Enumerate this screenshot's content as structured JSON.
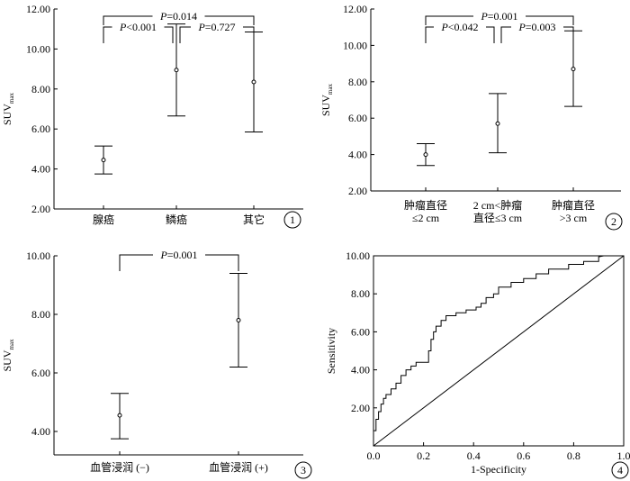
{
  "chart_data": [
    {
      "type": "scatter",
      "panel": "1",
      "ylabel": "SUVmax",
      "ylabel_main": "SUV",
      "ylabel_sub": "max",
      "ylim": [
        2,
        12
      ],
      "yticks": [
        "2.00",
        "4.00",
        "6.00",
        "8.00",
        "10.00",
        "12.00"
      ],
      "categories": [
        "腺癌",
        "鳞癌",
        "其它"
      ],
      "series": [
        {
          "mean": [
            4.45,
            8.95,
            8.35
          ],
          "lower": [
            3.75,
            6.65,
            5.85
          ],
          "upper": [
            5.15,
            11.25,
            10.85
          ]
        }
      ],
      "comparisons": [
        {
          "from": 0,
          "to": 1,
          "level": 1,
          "p_symbol": "P",
          "p_rest": "<0.001"
        },
        {
          "from": 1,
          "to": 2,
          "level": 1,
          "p_symbol": "P",
          "p_rest": "=0.727"
        },
        {
          "from": 0,
          "to": 2,
          "level": 2,
          "p_symbol": "P",
          "p_rest": "=0.014"
        }
      ]
    },
    {
      "type": "scatter",
      "panel": "2",
      "ylabel": "SUVmax",
      "ylabel_main": "SUV",
      "ylabel_sub": "max",
      "ylim": [
        2,
        12
      ],
      "yticks": [
        "2.00",
        "4.00",
        "6.00",
        "8.00",
        "10.00",
        "12.00"
      ],
      "categories": [
        [
          "肿瘤直径",
          "≤2 cm"
        ],
        [
          "2 cm<肿瘤",
          "直径≤3 cm"
        ],
        [
          "肿瘤直径",
          ">3 cm"
        ]
      ],
      "series": [
        {
          "mean": [
            4.0,
            5.7,
            8.7
          ],
          "lower": [
            3.4,
            4.1,
            6.65
          ],
          "upper": [
            4.6,
            7.35,
            10.8
          ]
        }
      ],
      "comparisons": [
        {
          "from": 0,
          "to": 1,
          "level": 1,
          "p_symbol": "P",
          "p_rest": "<0.042"
        },
        {
          "from": 1,
          "to": 2,
          "level": 1,
          "p_symbol": "P",
          "p_rest": "=0.003"
        },
        {
          "from": 0,
          "to": 2,
          "level": 2,
          "p_symbol": "P",
          "p_rest": "=0.001"
        }
      ]
    },
    {
      "type": "scatter",
      "panel": "3",
      "ylabel": "SUVmax",
      "ylabel_main": "SUV",
      "ylabel_sub": "max",
      "ylim": [
        3.2,
        10
      ],
      "yticks": [
        "4.00",
        "6.00",
        "8.00",
        "10.00"
      ],
      "categories": [
        "血管浸润 (−)",
        "血管浸润 (+)"
      ],
      "series": [
        {
          "mean": [
            4.55,
            7.8
          ],
          "lower": [
            3.75,
            6.2
          ],
          "upper": [
            5.3,
            9.4
          ]
        }
      ],
      "comparisons": [
        {
          "from": 0,
          "to": 1,
          "level": 1,
          "p_symbol": "P",
          "p_rest": "=0.001"
        }
      ]
    },
    {
      "type": "line",
      "panel": "4",
      "xlabel": "1-Specificity",
      "ylabel": "Sensitivity",
      "xlim": [
        0,
        1
      ],
      "ylim": [
        0,
        10
      ],
      "xticks": [
        "0.0",
        "0.2",
        "0.4",
        "0.6",
        "0.8",
        "1.0"
      ],
      "yticks": [
        "2.00",
        "4.00",
        "6.00",
        "8.00",
        "10.00"
      ],
      "series": [
        {
          "x": [
            0.0,
            0.0,
            0.01,
            0.01,
            0.02,
            0.02,
            0.03,
            0.03,
            0.04,
            0.04,
            0.05,
            0.05,
            0.07,
            0.07,
            0.09,
            0.09,
            0.11,
            0.11,
            0.13,
            0.13,
            0.15,
            0.15,
            0.17,
            0.17,
            0.22,
            0.22,
            0.23,
            0.23,
            0.24,
            0.24,
            0.25,
            0.25,
            0.27,
            0.27,
            0.29,
            0.29,
            0.33,
            0.33,
            0.37,
            0.37,
            0.41,
            0.41,
            0.43,
            0.43,
            0.45,
            0.45,
            0.48,
            0.48,
            0.5,
            0.5,
            0.55,
            0.55,
            0.6,
            0.6,
            0.65,
            0.65,
            0.7,
            0.7,
            0.78,
            0.78,
            0.84,
            0.84,
            0.9,
            0.9,
            0.92,
            1.0
          ],
          "y": [
            0.0,
            0.8,
            0.8,
            1.4,
            1.4,
            1.8,
            1.8,
            2.2,
            2.2,
            2.5,
            2.5,
            2.7,
            2.7,
            3.0,
            3.0,
            3.3,
            3.3,
            3.7,
            3.7,
            4.0,
            4.0,
            4.2,
            4.2,
            4.4,
            4.4,
            5.0,
            5.0,
            5.6,
            5.6,
            6.0,
            6.0,
            6.3,
            6.3,
            6.6,
            6.6,
            6.85,
            6.85,
            7.0,
            7.0,
            7.15,
            7.15,
            7.3,
            7.3,
            7.5,
            7.5,
            7.8,
            7.8,
            8.0,
            8.0,
            8.35,
            8.35,
            8.6,
            8.6,
            8.8,
            8.8,
            9.05,
            9.05,
            9.3,
            9.3,
            9.55,
            9.55,
            9.7,
            9.7,
            9.95,
            10.0,
            10.0
          ]
        },
        {
          "x": [
            0,
            1
          ],
          "y": [
            0,
            10
          ]
        }
      ]
    }
  ]
}
